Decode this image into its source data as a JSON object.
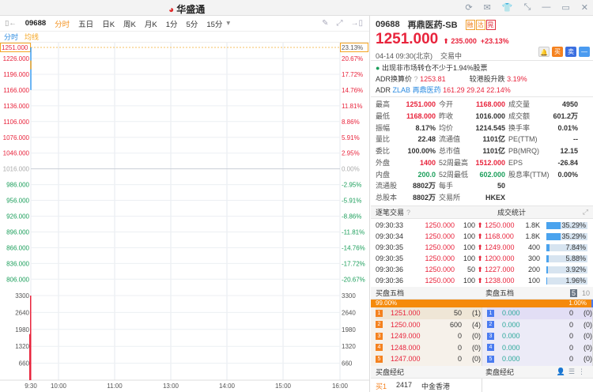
{
  "app": {
    "title": "华盛通",
    "window_controls": [
      "refresh-icon",
      "mail-icon",
      "skin-icon",
      "shrink-icon",
      "minimize-icon",
      "maximize-icon",
      "close-icon"
    ]
  },
  "toolbar": {
    "code": "09688",
    "tabs": [
      "分时",
      "五日",
      "日K",
      "周K",
      "月K",
      "1分",
      "5分",
      "15分"
    ],
    "active": "分时"
  },
  "legend": {
    "line1": "分时",
    "line2": "均线"
  },
  "chart_data": {
    "type": "line",
    "price_ticks": [
      "1251.000",
      "1226.000",
      "1196.000",
      "1166.000",
      "1136.000",
      "1106.000",
      "1076.000",
      "1046.000",
      "1016.000",
      "986.000",
      "956.000",
      "926.000",
      "896.000",
      "866.000",
      "836.000",
      "806.000"
    ],
    "pct_ticks": [
      "23.13%",
      "20.67%",
      "17.72%",
      "14.76%",
      "11.81%",
      "8.86%",
      "5.91%",
      "2.95%",
      "0.00%",
      "-2.95%",
      "-5.91%",
      "-8.86%",
      "-11.81%",
      "-14.76%",
      "-17.72%",
      "-20.67%"
    ],
    "volume_ticks": [
      "3300",
      "2640",
      "1980",
      "1320",
      "660"
    ],
    "time_ticks": [
      "9:30",
      "10:00",
      "11:00",
      "13:00",
      "14:00",
      "15:00",
      "16:00"
    ],
    "prev_close": 1016,
    "price_series": [
      {
        "time": "9:30",
        "price": 1251
      },
      {
        "time": "9:30",
        "price": 1166
      }
    ],
    "avg_series": [
      {
        "time": "9:30",
        "price": 1214.5
      }
    ],
    "volume": [
      {
        "time": "9:30",
        "value": 3300
      },
      {
        "time": "9:30",
        "value": 1800
      }
    ],
    "colors": {
      "price": "#3a9cf0",
      "avg": "#f5a623",
      "up": "#e8243c",
      "down": "#1a9e5a"
    }
  },
  "quote": {
    "code": "09688",
    "name": "再鼎医药-SB",
    "tags": [
      "融",
      "沽",
      "晃"
    ],
    "price": "1251.000",
    "change": "235.000",
    "pct": "+23.13%",
    "datetime": "04-14 09:30(北京)",
    "status": "交易中",
    "btn_buy": "买",
    "btn_sell": "卖"
  },
  "notice": "出现非市场转仓不少于1.94%股票",
  "adr": {
    "label": "ADR换算价",
    "value": "1253.81",
    "cmp_label": "较港股升跌",
    "cmp_value": "3.19%",
    "prefix": "ADR",
    "ticker": "ZLAB",
    "name": "再鼎医药",
    "price": "161.29",
    "chg": "29.24",
    "pct": "22.14%"
  },
  "stats": [
    [
      "最高",
      "1251.000",
      "red",
      "今开",
      "1168.000",
      "red",
      "成交量",
      "4950",
      ""
    ],
    [
      "最低",
      "1168.000",
      "red",
      "昨收",
      "1016.000",
      "",
      "成交额",
      "601.2万",
      ""
    ],
    [
      "振幅",
      "8.17%",
      "",
      "均价",
      "1214.545",
      "",
      "换手率",
      "0.01%",
      ""
    ],
    [
      "量比",
      "22.48",
      "",
      "流通值",
      "1101亿",
      "",
      "PE(TTM)",
      "--",
      ""
    ],
    [
      "委比",
      "100.00%",
      "",
      "总市值",
      "1101亿",
      "",
      "PB(MRQ)",
      "12.15",
      ""
    ],
    [
      "外盘",
      "1400",
      "red",
      "52周最高",
      "1512.000",
      "red",
      "EPS",
      "-26.84",
      ""
    ],
    [
      "内盘",
      "200.0",
      "green",
      "52周最低",
      "602.000",
      "green",
      "股息率(TTM)",
      "0.00%",
      ""
    ],
    [
      "流通股",
      "8802万",
      "",
      "每手",
      "50",
      "",
      "",
      "",
      " "
    ],
    [
      "总股本",
      "8802万",
      "",
      "交易所",
      "HKEX",
      "",
      "",
      "",
      " "
    ]
  ],
  "ticks": {
    "title": "逐笔交易",
    "stats_title": "成交统计",
    "rows": [
      [
        "09:30:33",
        "1250.000",
        "100",
        "1250.000",
        "1.8K",
        "35.29%",
        35.29
      ],
      [
        "09:30:34",
        "1250.000",
        "100",
        "1168.000",
        "1.8K",
        "35.29%",
        35.29
      ],
      [
        "09:30:35",
        "1250.000",
        "100",
        "1249.000",
        "400",
        "7.84%",
        7.84
      ],
      [
        "09:30:35",
        "1250.000",
        "100",
        "1200.000",
        "300",
        "5.88%",
        5.88
      ],
      [
        "09:30:36",
        "1250.000",
        "50",
        "1227.000",
        "200",
        "3.92%",
        3.92
      ],
      [
        "09:30:36",
        "1250.000",
        "100",
        "1238.000",
        "100",
        "1.96%",
        1.96
      ]
    ]
  },
  "orderbook": {
    "bid_title": "买盘五档",
    "ask_title": "卖盘五档",
    "depth5": "5",
    "depth10": "10",
    "bid_pct": "99.00%",
    "ask_pct": "1.00%",
    "bid_ratio": 99,
    "bids": [
      [
        "1",
        "1251.000",
        "50",
        "(1)"
      ],
      [
        "2",
        "1250.000",
        "600",
        "(4)"
      ],
      [
        "3",
        "1249.000",
        "0",
        "(0)"
      ],
      [
        "4",
        "1248.000",
        "0",
        "(0)"
      ],
      [
        "5",
        "1247.000",
        "0",
        "(0)"
      ]
    ],
    "asks": [
      [
        "1",
        "0.000",
        "0",
        "(0)"
      ],
      [
        "2",
        "0.000",
        "0",
        "(0)"
      ],
      [
        "3",
        "0.000",
        "0",
        "(0)"
      ],
      [
        "4",
        "0.000",
        "0",
        "(0)"
      ],
      [
        "5",
        "0.000",
        "0",
        "(0)"
      ]
    ]
  },
  "brokers": {
    "bid_title": "买盘经纪",
    "ask_title": "卖盘经纪",
    "rows": [
      [
        "买1",
        "2417",
        "中金香港"
      ]
    ]
  }
}
